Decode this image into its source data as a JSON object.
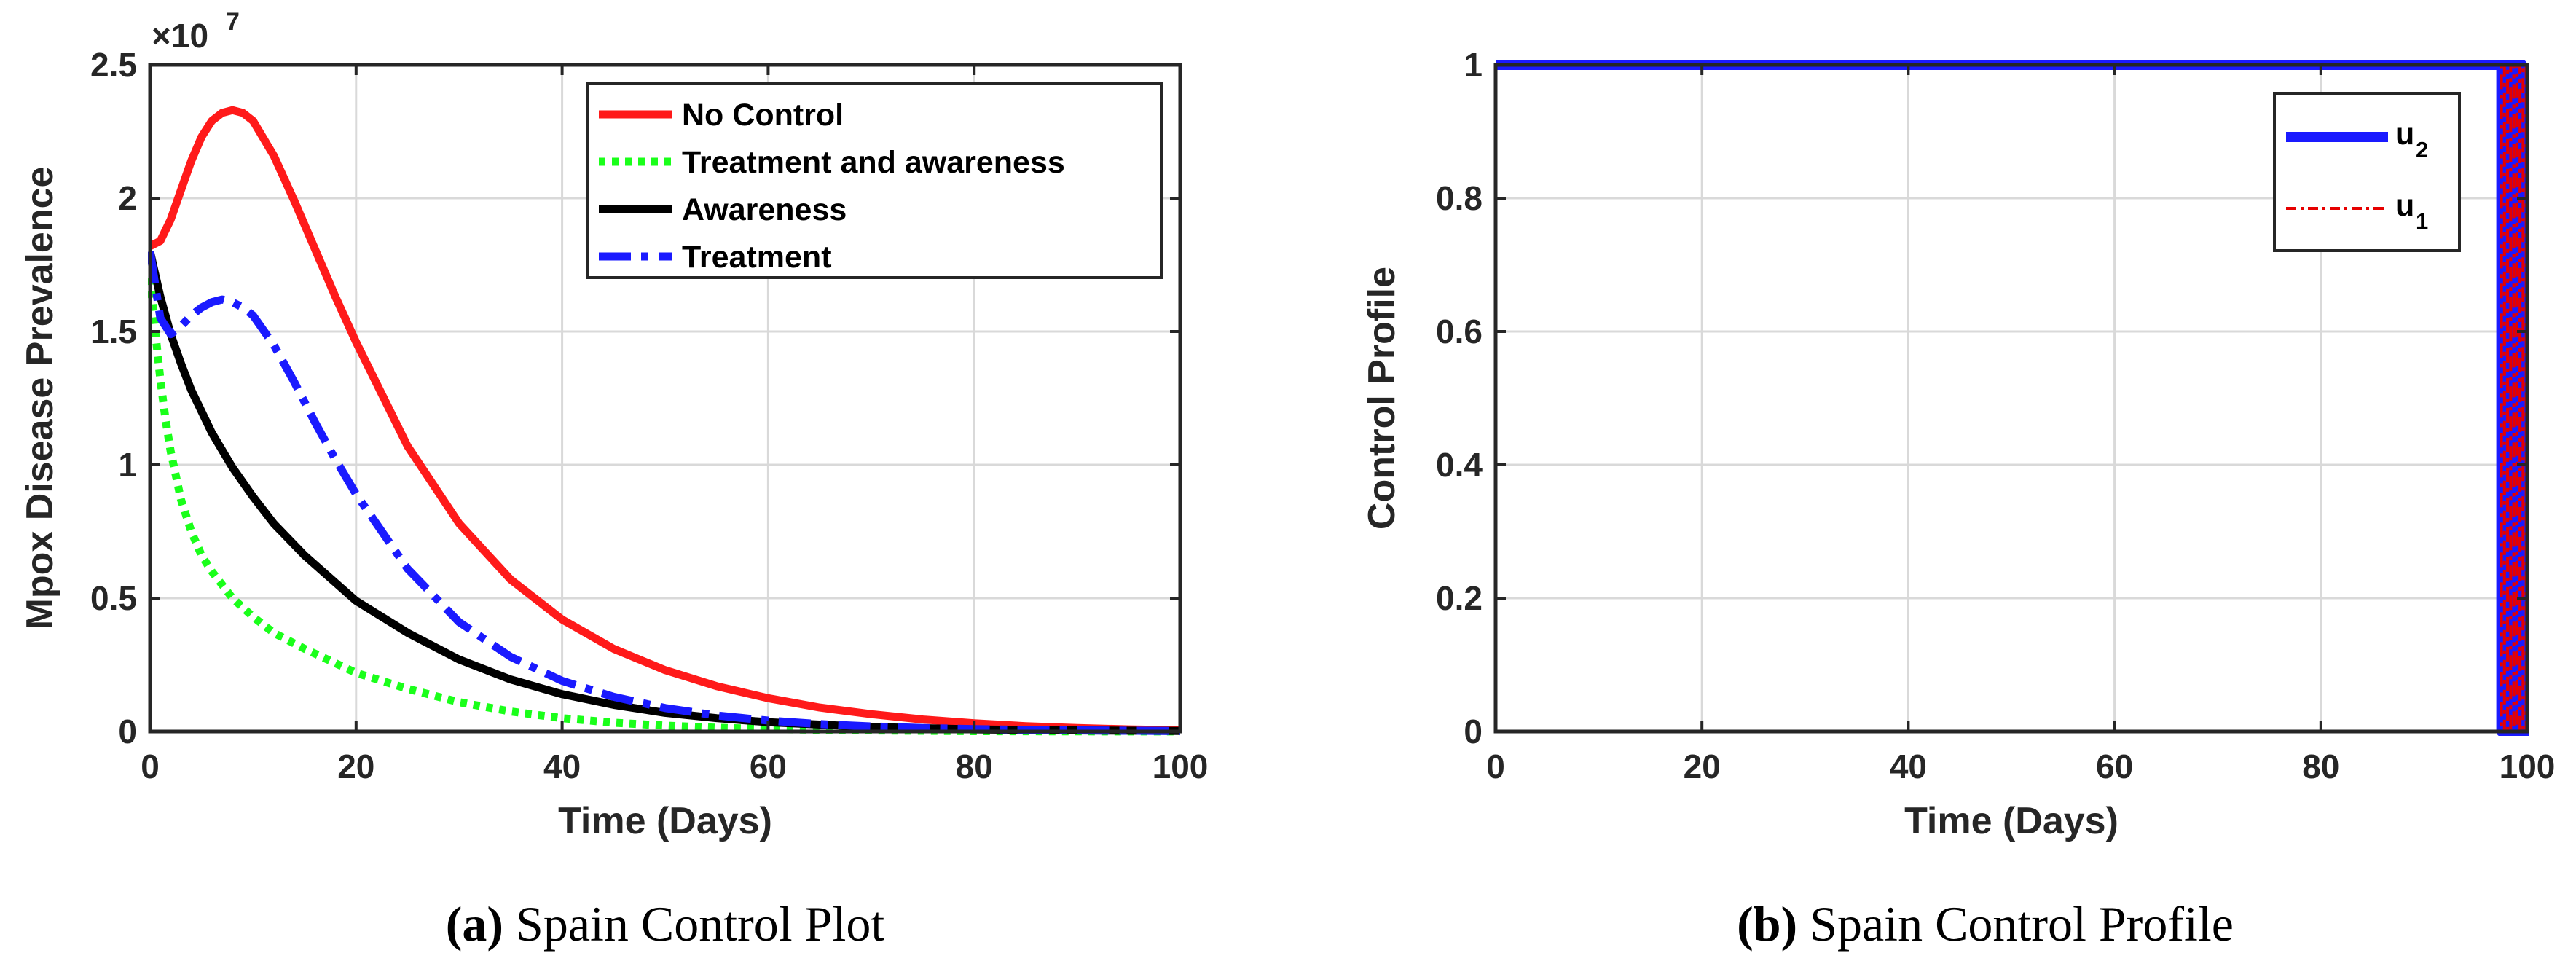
{
  "chart_data": [
    {
      "id": "a",
      "type": "line",
      "caption_label": "(a)",
      "caption_text": "Spain Control Plot",
      "xlabel": "Time (Days)",
      "ylabel": "Mpox Disease Prevalence",
      "exponent_label": "×10",
      "exponent_power": "7",
      "xlim": [
        0,
        100
      ],
      "ylim": [
        0,
        25000000
      ],
      "xticks": [
        0,
        20,
        40,
        60,
        80,
        100
      ],
      "xtick_labels": [
        "0",
        "20",
        "40",
        "60",
        "80",
        "100"
      ],
      "yticks": [
        0,
        5000000,
        10000000,
        15000000,
        20000000,
        25000000
      ],
      "ytick_labels": [
        "0",
        "0.5",
        "1",
        "1.5",
        "2",
        "2.5"
      ],
      "grid": true,
      "legend_position": "top-right",
      "series": [
        {
          "name": "No Control",
          "color": "#ff1a1a",
          "style": "solid",
          "x": [
            0,
            1,
            2,
            3,
            4,
            5,
            6,
            7,
            8,
            9,
            10,
            12,
            14,
            16,
            18,
            20,
            25,
            30,
            35,
            40,
            45,
            50,
            55,
            60,
            65,
            70,
            75,
            80,
            85,
            90,
            95,
            100
          ],
          "y": [
            18200000,
            18400000,
            19200000,
            20300000,
            21400000,
            22300000,
            22900000,
            23200000,
            23300000,
            23200000,
            22900000,
            21600000,
            19900000,
            18100000,
            16300000,
            14600000,
            10700000,
            7800000,
            5700000,
            4200000,
            3100000,
            2300000,
            1700000,
            1250000,
            900000,
            650000,
            450000,
            310000,
            200000,
            130000,
            80000,
            50000
          ]
        },
        {
          "name": "Treatment and awareness",
          "color": "#1aff1a",
          "style": "dotted",
          "x": [
            0,
            0.5,
            1,
            1.5,
            2,
            3,
            4,
            5,
            6,
            8,
            10,
            12,
            15,
            20,
            25,
            30,
            35,
            40,
            45,
            50,
            55,
            60,
            70,
            80,
            90,
            100
          ],
          "y": [
            17000000,
            15000000,
            13200000,
            11700000,
            10500000,
            8700000,
            7500000,
            6600000,
            6000000,
            5000000,
            4300000,
            3700000,
            3100000,
            2200000,
            1600000,
            1100000,
            750000,
            500000,
            330000,
            220000,
            140000,
            90000,
            40000,
            15000,
            6000,
            2000
          ]
        },
        {
          "name": "Awareness",
          "color": "#000000",
          "style": "solid",
          "x": [
            0,
            1,
            2,
            3,
            4,
            5,
            6,
            8,
            10,
            12,
            15,
            20,
            25,
            30,
            35,
            40,
            45,
            50,
            55,
            60,
            70,
            80,
            90,
            100
          ],
          "y": [
            18000000,
            16300000,
            14900000,
            13800000,
            12800000,
            12000000,
            11200000,
            9900000,
            8800000,
            7800000,
            6600000,
            4900000,
            3700000,
            2700000,
            1950000,
            1400000,
            1000000,
            700000,
            500000,
            350000,
            170000,
            80000,
            40000,
            20000
          ]
        },
        {
          "name": "Treatment",
          "color": "#1a1aff",
          "style": "dashdot",
          "x": [
            0,
            1,
            2,
            3,
            4,
            5,
            6,
            7,
            8,
            9,
            10,
            12,
            14,
            16,
            18,
            20,
            25,
            30,
            35,
            40,
            45,
            50,
            55,
            60,
            65,
            70,
            75,
            80,
            85,
            90,
            95,
            100
          ],
          "y": [
            18000000,
            15500000,
            14900000,
            15200000,
            15600000,
            15900000,
            16100000,
            16200000,
            16100000,
            15900000,
            15600000,
            14500000,
            13100000,
            11600000,
            10200000,
            8900000,
            6100000,
            4100000,
            2800000,
            1900000,
            1300000,
            880000,
            600000,
            410000,
            280000,
            190000,
            130000,
            90000,
            60000,
            40000,
            28000,
            20000
          ]
        }
      ]
    },
    {
      "id": "b",
      "type": "line",
      "caption_label": "(b)",
      "caption_text": "Spain Control Profile",
      "xlabel": "Time (Days)",
      "ylabel": "Control Profile",
      "xlim": [
        0,
        100
      ],
      "ylim": [
        0,
        1
      ],
      "xticks": [
        0,
        20,
        40,
        60,
        80,
        100
      ],
      "xtick_labels": [
        "0",
        "20",
        "40",
        "60",
        "80",
        "100"
      ],
      "yticks": [
        0,
        0.2,
        0.4,
        0.6,
        0.8,
        1
      ],
      "ytick_labels": [
        "0",
        "0.2",
        "0.4",
        "0.6",
        "0.8",
        "1"
      ],
      "grid": true,
      "legend_position": "top-right",
      "series": [
        {
          "name": "u",
          "subscript": "2",
          "color": "#1a1aff",
          "style": "solid-thick",
          "x": [
            0,
            97.5,
            97.5,
            98,
            98,
            98.5,
            98.5,
            99,
            99,
            99.5,
            99.5,
            100,
            100
          ],
          "y": [
            1,
            1,
            0,
            0,
            1,
            1,
            0,
            0,
            1,
            1,
            0,
            0,
            1
          ]
        },
        {
          "name": "u",
          "subscript": "1",
          "color": "#e60000",
          "style": "dashdot",
          "x": [
            0,
            97.5,
            97.5,
            97.8,
            97.8,
            98.1,
            98.1,
            98.4,
            98.4,
            98.7,
            98.7,
            99,
            99,
            99.3,
            99.3,
            99.6,
            99.6,
            99.9,
            99.9
          ],
          "y": [
            1,
            1,
            0,
            0,
            1,
            1,
            0,
            0,
            1,
            1,
            0,
            0,
            1,
            1,
            0,
            0,
            1,
            1,
            0
          ]
        }
      ]
    }
  ]
}
